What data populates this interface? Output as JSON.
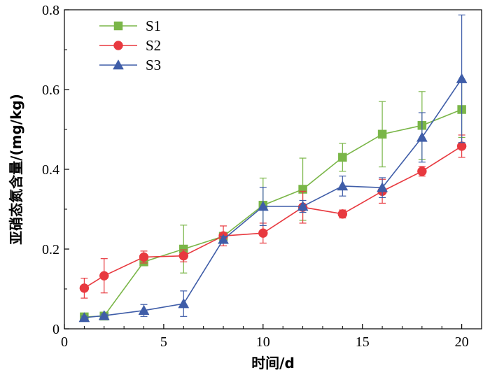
{
  "chart_data": {
    "type": "line",
    "title": "",
    "xlabel": "时间/d",
    "ylabel": "亚硝态氮含量/(mg/kg)",
    "xlim": [
      0,
      21
    ],
    "ylim": [
      0,
      0.8
    ],
    "xticks": [
      0,
      5,
      10,
      15,
      20
    ],
    "yticks": [
      0,
      0.2,
      0.4,
      0.6,
      0.8
    ],
    "xtick_labels": [
      "0",
      "5",
      "10",
      "15",
      "20"
    ],
    "ytick_labels": [
      "0",
      "0.2",
      "0.4",
      "0.6",
      "0.8"
    ],
    "grid": false,
    "legend_position": "top-left",
    "x": [
      1,
      2,
      4,
      6,
      8,
      10,
      12,
      14,
      16,
      18,
      20
    ],
    "series": [
      {
        "name": "S1",
        "color": "#7ab648",
        "marker": "square",
        "values": [
          0.03,
          0.032,
          0.168,
          0.2,
          0.232,
          0.31,
          0.35,
          0.43,
          0.488,
          0.51,
          0.55
        ],
        "errors": [
          0.005,
          0.005,
          0.01,
          0.06,
          0.01,
          0.068,
          0.078,
          0.035,
          0.082,
          0.085,
          0.07
        ]
      },
      {
        "name": "S2",
        "color": "#e8393f",
        "marker": "circle",
        "values": [
          0.102,
          0.133,
          0.18,
          0.183,
          0.233,
          0.24,
          0.305,
          0.288,
          0.345,
          0.395,
          0.458
        ],
        "errors": [
          0.025,
          0.043,
          0.015,
          0.015,
          0.025,
          0.025,
          0.04,
          0.01,
          0.03,
          0.012,
          0.028
        ]
      },
      {
        "name": "S3",
        "color": "#3f5da8",
        "marker": "triangle",
        "values": [
          0.028,
          0.033,
          0.046,
          0.063,
          0.224,
          0.307,
          0.307,
          0.358,
          0.354,
          0.48,
          0.627
        ],
        "errors": [
          0.004,
          0.004,
          0.015,
          0.032,
          0.008,
          0.048,
          0.015,
          0.025,
          0.025,
          0.062,
          0.16
        ]
      }
    ]
  }
}
